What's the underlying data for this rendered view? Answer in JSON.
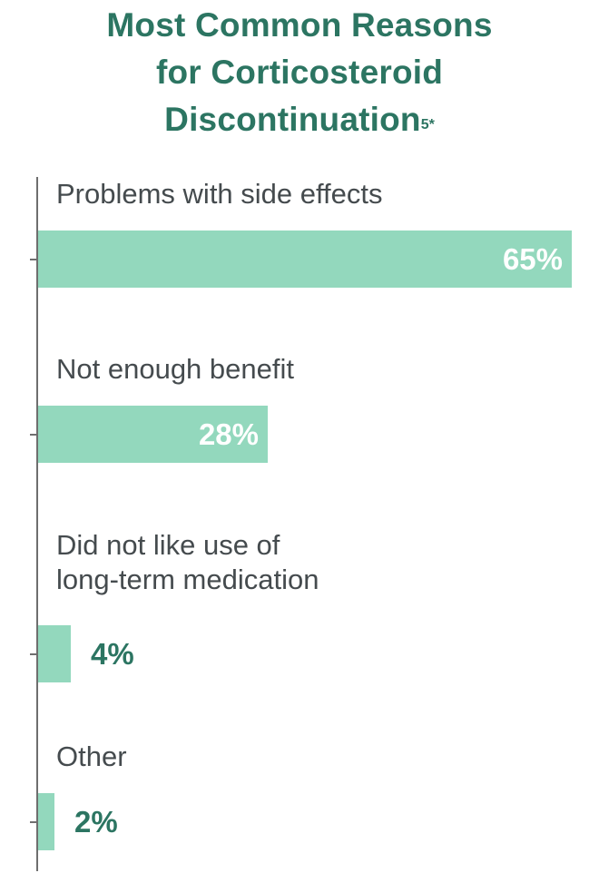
{
  "chart_data": {
    "type": "bar",
    "orientation": "horizontal",
    "title_lines": [
      "Most Common Reasons",
      "for Corticosteroid",
      "Discontinuation"
    ],
    "title_superscript": "5*",
    "categories": [
      "Problems with side effects",
      "Not enough benefit",
      "Did not like use of\nlong-term medication",
      "Other"
    ],
    "values": [
      65,
      28,
      4,
      2
    ],
    "value_labels": [
      "65%",
      "28%",
      "4%",
      "2%"
    ],
    "xlim": [
      0,
      65
    ],
    "grid": false,
    "legend": "none",
    "colors": {
      "bar": "#93d8bd",
      "title": "#2c7562",
      "label": "#454b4e",
      "value_outside": "#2c7562",
      "value_inside": "#ffffff",
      "axis": "#6e6e6e"
    }
  }
}
